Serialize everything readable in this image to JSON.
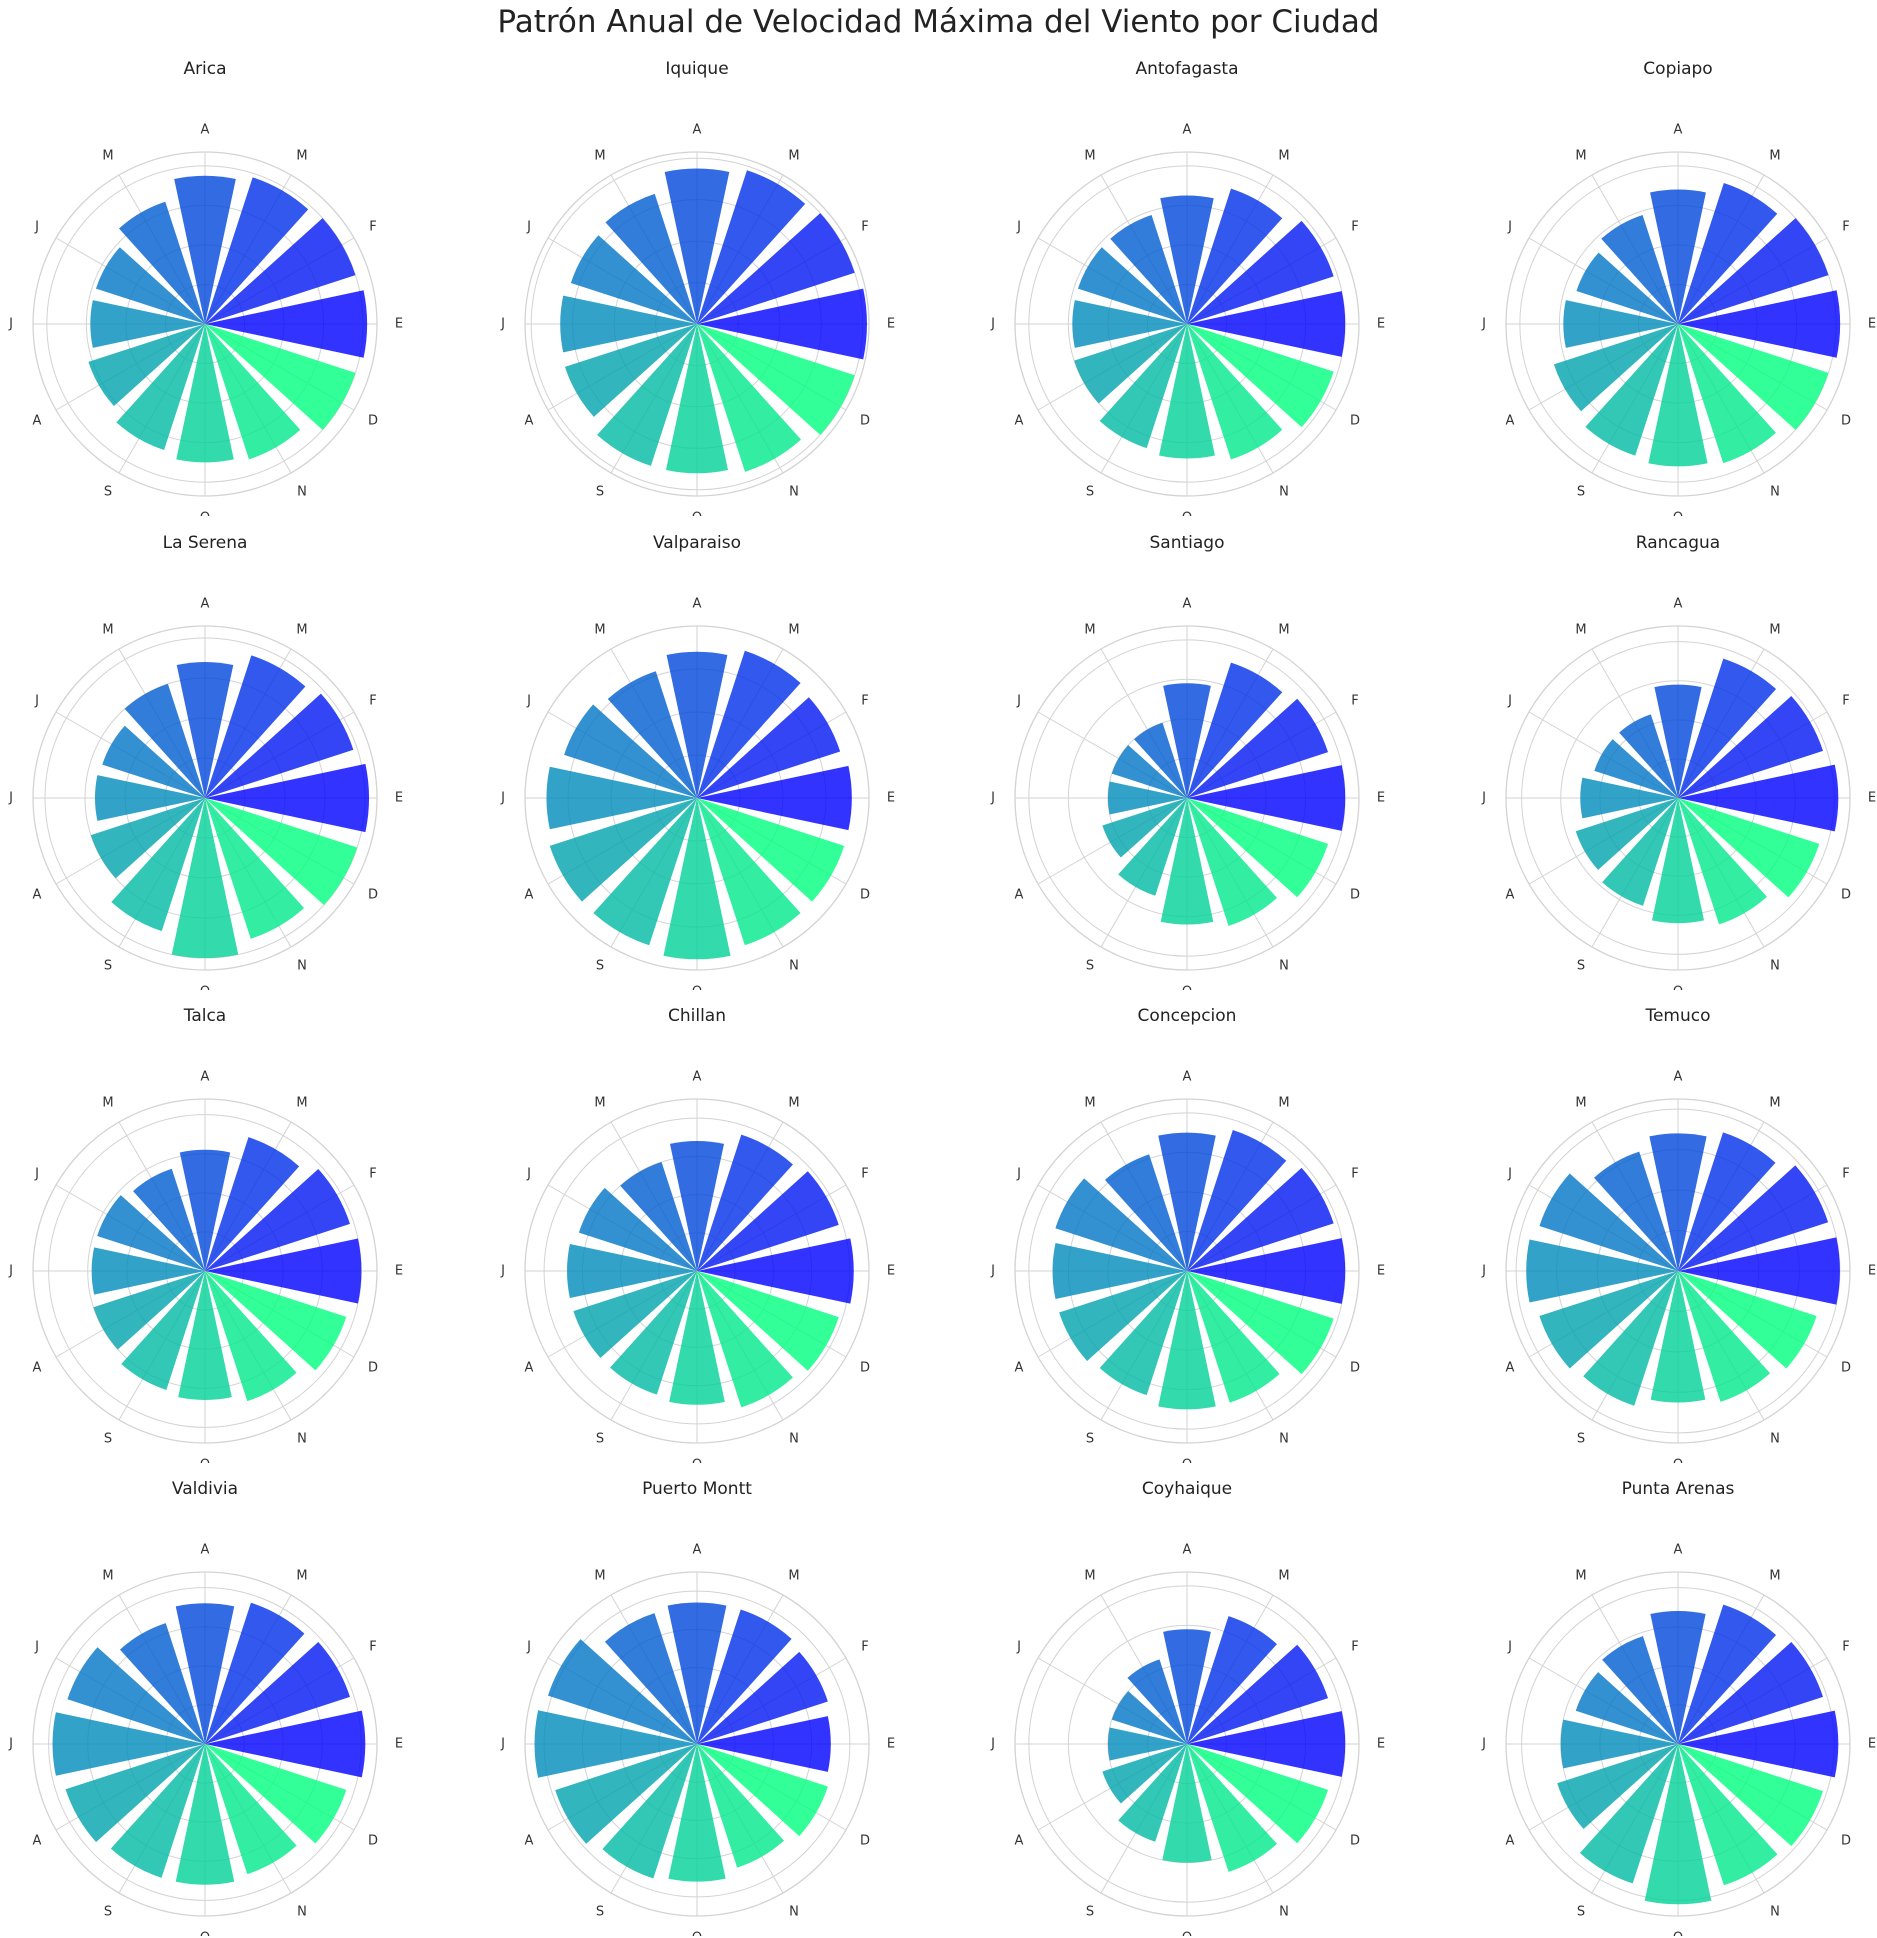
{
  "title": "Patrón Anual de Velocidad Máxima del Viento por Ciudad",
  "chart_data": {
    "type": "polar-bar",
    "month_labels": [
      "E",
      "F",
      "M",
      "A",
      "M",
      "J",
      "J",
      "A",
      "S",
      "O",
      "N",
      "D"
    ],
    "colormap": "winter",
    "colors": {
      "start": "#0000ff",
      "end": "#00ff80",
      "grid": "#d3d3d3"
    },
    "grid": true,
    "subplots": [
      {
        "city": "Arica",
        "values": [
          82,
          80,
          78,
          75,
          65,
          58,
          58,
          62,
          67,
          70,
          72,
          80
        ],
        "rmax": 87
      },
      {
        "city": "Iquique",
        "values": [
          82,
          80,
          78,
          75,
          66,
          64,
          66,
          67,
          72,
          72,
          75,
          80
        ],
        "rmax": 83
      },
      {
        "city": "Antofagasta",
        "values": [
          80,
          78,
          72,
          65,
          58,
          58,
          58,
          60,
          66,
          68,
          72,
          78
        ],
        "rmax": 87
      },
      {
        "city": "Copiapo",
        "values": [
          82,
          80,
          75,
          68,
          58,
          54,
          58,
          66,
          70,
          72,
          74,
          80
        ],
        "rmax": 87
      },
      {
        "city": "La Serena",
        "values": [
          82,
          78,
          75,
          68,
          60,
          54,
          55,
          60,
          70,
          80,
          74,
          80
        ],
        "rmax": 86
      },
      {
        "city": "Valparaiso",
        "values": [
          72,
          70,
          72,
          68,
          62,
          65,
          70,
          72,
          72,
          75,
          72,
          72
        ],
        "rmax": 80
      },
      {
        "city": "Santiago",
        "values": [
          80,
          75,
          72,
          58,
          40,
          40,
          40,
          45,
          52,
          64,
          68,
          75
        ],
        "rmax": 87
      },
      {
        "city": "Rancagua",
        "values": [
          82,
          78,
          75,
          58,
          45,
          45,
          50,
          55,
          58,
          64,
          68,
          76
        ],
        "rmax": 88
      },
      {
        "city": "Talca",
        "values": [
          80,
          78,
          72,
          62,
          55,
          58,
          58,
          60,
          64,
          66,
          70,
          76
        ],
        "rmax": 88
      },
      {
        "city": "Chillan",
        "values": [
          82,
          78,
          75,
          68,
          60,
          65,
          68,
          68,
          68,
          70,
          75,
          78
        ],
        "rmax": 90
      },
      {
        "city": "Concepcion",
        "values": [
          80,
          78,
          75,
          70,
          62,
          70,
          68,
          68,
          66,
          70,
          70,
          78
        ],
        "rmax": 87
      },
      {
        "city": "Temuco",
        "values": [
          80,
          78,
          72,
          68,
          62,
          72,
          75,
          72,
          70,
          65,
          68,
          72
        ],
        "rmax": 85
      },
      {
        "city": "Valdivia",
        "values": [
          82,
          78,
          76,
          72,
          65,
          74,
          78,
          75,
          72,
          72,
          70,
          76
        ],
        "rmax": 88
      },
      {
        "city": "Puerto Montt",
        "values": [
          70,
          72,
          74,
          74,
          72,
          82,
          85,
          78,
          74,
          72,
          68,
          72
        ],
        "rmax": 90
      },
      {
        "city": "Coyhaique",
        "values": [
          80,
          75,
          68,
          58,
          45,
          40,
          40,
          45,
          52,
          60,
          68,
          75
        ],
        "rmax": 87
      },
      {
        "city": "Punta Arenas",
        "values": [
          82,
          78,
          75,
          68,
          58,
          55,
          60,
          65,
          75,
          82,
          76,
          78
        ],
        "rmax": 88
      }
    ]
  }
}
